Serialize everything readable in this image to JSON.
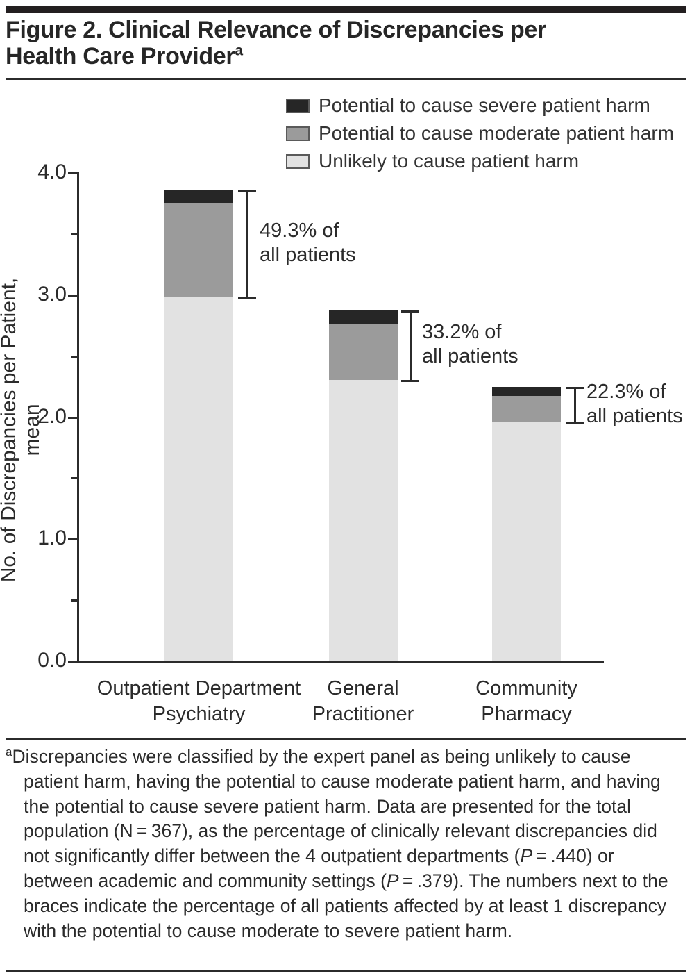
{
  "page": {
    "title_line1": "Figure 2. Clinical Relevance of Discrepancies per",
    "title_line2": "Health Care Provider",
    "title_superscript": "a"
  },
  "legend": {
    "items": [
      {
        "label": "Potential to cause severe patient harm",
        "color": "#262626"
      },
      {
        "label": "Potential to cause moderate patient harm",
        "color": "#9b9b9b"
      },
      {
        "label": "Unlikely to cause patient harm",
        "color": "#e2e2e2"
      }
    ]
  },
  "chart_data": {
    "type": "bar",
    "stacked": true,
    "title": "Figure 2. Clinical Relevance of Discrepancies per Health Care Provider",
    "categories": [
      "Outpatient Department|Psychiatry",
      "General|Practitioner",
      "Community|Pharmacy"
    ],
    "series": [
      {
        "name": "Unlikely to cause patient harm",
        "color": "#e2e2e2",
        "values": [
          2.98,
          2.3,
          1.95
        ]
      },
      {
        "name": "Potential to cause moderate patient harm",
        "color": "#9b9b9b",
        "values": [
          0.77,
          0.46,
          0.22
        ]
      },
      {
        "name": "Potential to cause severe patient harm",
        "color": "#262626",
        "values": [
          0.1,
          0.11,
          0.07
        ]
      }
    ],
    "totals": [
      3.85,
      2.87,
      2.24
    ],
    "ylabel": "No. of Discrepancies per Patient, mean",
    "xlabel": "",
    "ylim": [
      0,
      4
    ],
    "yticks_major": [
      0,
      1,
      2,
      3,
      4
    ],
    "ytick_labels": [
      "0.0",
      "1.0",
      "2.0",
      "3.0",
      "4.0"
    ],
    "yticks_minor": [
      0.5,
      1.5,
      2.5,
      3.5
    ],
    "grid": false,
    "legend_position": "top-right",
    "annotations": [
      {
        "text_line1": "49.3% of",
        "text_line2": "all patients",
        "bar_index": 0,
        "span_from": 2.98,
        "span_to": 3.85
      },
      {
        "text_line1": "33.2% of",
        "text_line2": "all patients",
        "bar_index": 1,
        "span_from": 2.3,
        "span_to": 2.87
      },
      {
        "text_line1": "22.3% of",
        "text_line2": "all patients",
        "bar_index": 2,
        "span_from": 1.95,
        "span_to": 2.24
      }
    ]
  },
  "footnote": {
    "superscript": "a",
    "segments": [
      {
        "text": "Discrepancies were classified by the expert panel as being unlikely to cause patient harm, having the potential to cause moderate patient harm, and having the potential to cause severe patient harm. Data are presented for the total population (N = 367), as the percentage of clinically relevant discrepancies did not significantly differ between the 4 outpatient departments (",
        "italic": false
      },
      {
        "text": "P",
        "italic": true
      },
      {
        "text": " = .440) or between academic and community settings (",
        "italic": false
      },
      {
        "text": "P",
        "italic": true
      },
      {
        "text": " = .379). The numbers next to the braces indicate the percentage of all patients affected by at least 1 discrepancy with the potential to cause moderate to severe patient harm.",
        "italic": false
      }
    ]
  },
  "colors": {
    "severe": "#262626",
    "moderate": "#9b9b9b",
    "unlikely": "#e2e2e2",
    "text": "#2b2b2b",
    "axis": "#2b2b2b"
  }
}
